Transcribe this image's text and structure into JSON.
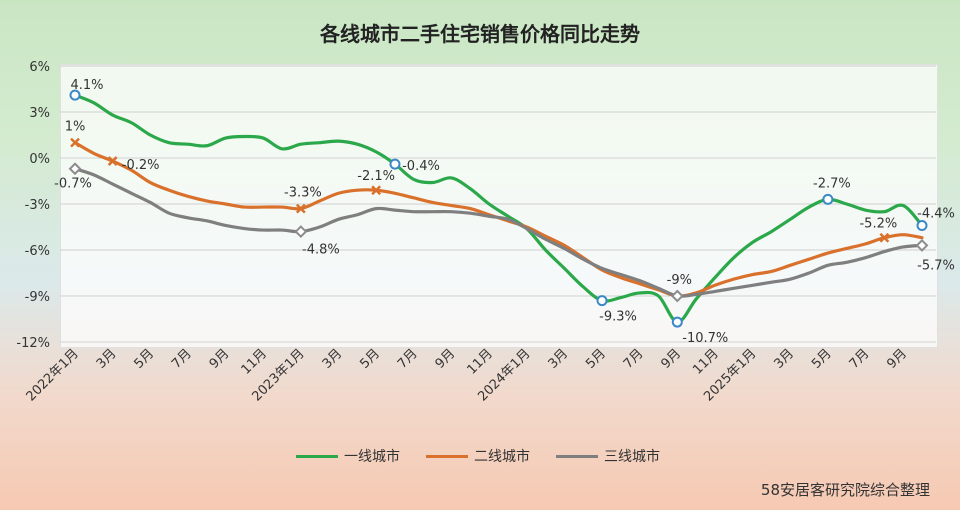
{
  "title": "各线城市二手住宅销售价格同比走势",
  "source": "58安居客研究院综合整理",
  "chart_data": {
    "type": "line",
    "title": "各线城市二手住宅销售价格同比走势",
    "ylim": [
      -12,
      6
    ],
    "yticks": [
      6,
      3,
      0,
      -3,
      -6,
      -9,
      -12
    ],
    "ytick_labels": [
      "6%",
      "3%",
      "0%",
      "-3%",
      "-6%",
      "-9%",
      "-12%"
    ],
    "x_labels": [
      "2022年1月",
      "2022年2月",
      "3月",
      "2022年4月",
      "5月",
      "2022年6月",
      "7月",
      "2022年8月",
      "9月",
      "2022年10月",
      "11月",
      "2022年12月",
      "2023年1月",
      "2023年2月",
      "3月",
      "2023年4月",
      "5月",
      "2023年6月",
      "7月",
      "2023年8月",
      "9月",
      "2023年10月",
      "11月",
      "2023年12月",
      "2024年1月",
      "2024年2月",
      "3月",
      "2024年4月",
      "5月",
      "2024年6月",
      "7月",
      "2024年8月",
      "9月",
      "2024年10月",
      "11月",
      "2024年12月",
      "2025年1月",
      "2025年2月",
      "3月",
      "2025年4月",
      "5月",
      "2025年6月",
      "7月",
      "2025年8月",
      "9月",
      "2025年10月"
    ],
    "shown_tick_labels": [
      "2022年1月",
      "3月",
      "5月",
      "7月",
      "9月",
      "11月",
      "2023年1月",
      "3月",
      "5月",
      "7月",
      "9月",
      "11月",
      "2024年1月",
      "3月",
      "5月",
      "7月",
      "9月",
      "11月",
      "2025年1月",
      "3月",
      "5月",
      "7月",
      "9月"
    ],
    "grid": true,
    "legend_position": "bottom",
    "series": [
      {
        "name": "一线城市",
        "color": "#2aa84a",
        "values": [
          4.1,
          3.6,
          2.8,
          2.3,
          1.5,
          1.0,
          0.9,
          0.8,
          1.3,
          1.4,
          1.3,
          0.6,
          0.9,
          1.0,
          1.1,
          0.9,
          0.4,
          -0.4,
          -1.4,
          -1.6,
          -1.3,
          -2.0,
          -3.0,
          -3.8,
          -4.6,
          -6.0,
          -7.2,
          -8.4,
          -9.3,
          -9.1,
          -8.8,
          -9.0,
          -10.7,
          -9.2,
          -7.8,
          -6.5,
          -5.5,
          -4.8,
          -4.0,
          -3.2,
          -2.7,
          -3.0,
          -3.4,
          -3.5,
          -3.1,
          -4.4
        ],
        "markers": [
          {
            "index": 0,
            "label": "4.1%"
          },
          {
            "index": 17,
            "label": "-0.4%"
          },
          {
            "index": 28,
            "label": "-9.3%"
          },
          {
            "index": 32,
            "label": "-10.7%"
          },
          {
            "index": 40,
            "label": "-2.7%"
          },
          {
            "index": 45,
            "label": "-4.4%"
          }
        ]
      },
      {
        "name": "二线城市",
        "color": "#d9712c",
        "values": [
          1.0,
          0.3,
          -0.2,
          -0.8,
          -1.6,
          -2.1,
          -2.5,
          -2.8,
          -3.0,
          -3.2,
          -3.2,
          -3.2,
          -3.3,
          -2.8,
          -2.3,
          -2.1,
          -2.1,
          -2.3,
          -2.6,
          -2.9,
          -3.1,
          -3.3,
          -3.7,
          -4.1,
          -4.5,
          -5.1,
          -5.7,
          -6.5,
          -7.3,
          -7.8,
          -8.2,
          -8.6,
          -9.0,
          -8.8,
          -8.3,
          -7.9,
          -7.6,
          -7.4,
          -7.0,
          -6.6,
          -6.2,
          -5.9,
          -5.6,
          -5.2,
          -5.0,
          -5.2
        ],
        "markers": [
          {
            "index": 0,
            "label": "1%"
          },
          {
            "index": 2,
            "label": "-0.2%"
          },
          {
            "index": 12,
            "label": "-3.3%"
          },
          {
            "index": 16,
            "label": "-2.1%"
          },
          {
            "index": 43,
            "label": "-5.2%"
          }
        ]
      },
      {
        "name": "三线城市",
        "color": "#7f7f7f",
        "values": [
          -0.7,
          -1.1,
          -1.7,
          -2.3,
          -2.9,
          -3.6,
          -3.9,
          -4.1,
          -4.4,
          -4.6,
          -4.7,
          -4.7,
          -4.8,
          -4.5,
          -4.0,
          -3.7,
          -3.3,
          -3.4,
          -3.5,
          -3.5,
          -3.5,
          -3.6,
          -3.8,
          -4.0,
          -4.6,
          -5.3,
          -5.9,
          -6.6,
          -7.2,
          -7.6,
          -8.0,
          -8.5,
          -9.0,
          -8.9,
          -8.7,
          -8.5,
          -8.3,
          -8.1,
          -7.9,
          -7.5,
          -7.0,
          -6.8,
          -6.5,
          -6.1,
          -5.8,
          -5.7
        ],
        "markers": [
          {
            "index": 0,
            "label": "-0.7%"
          },
          {
            "index": 12,
            "label": "-4.8%"
          },
          {
            "index": 32,
            "label": "-9%"
          },
          {
            "index": 45,
            "label": "-5.7%"
          }
        ]
      }
    ]
  }
}
